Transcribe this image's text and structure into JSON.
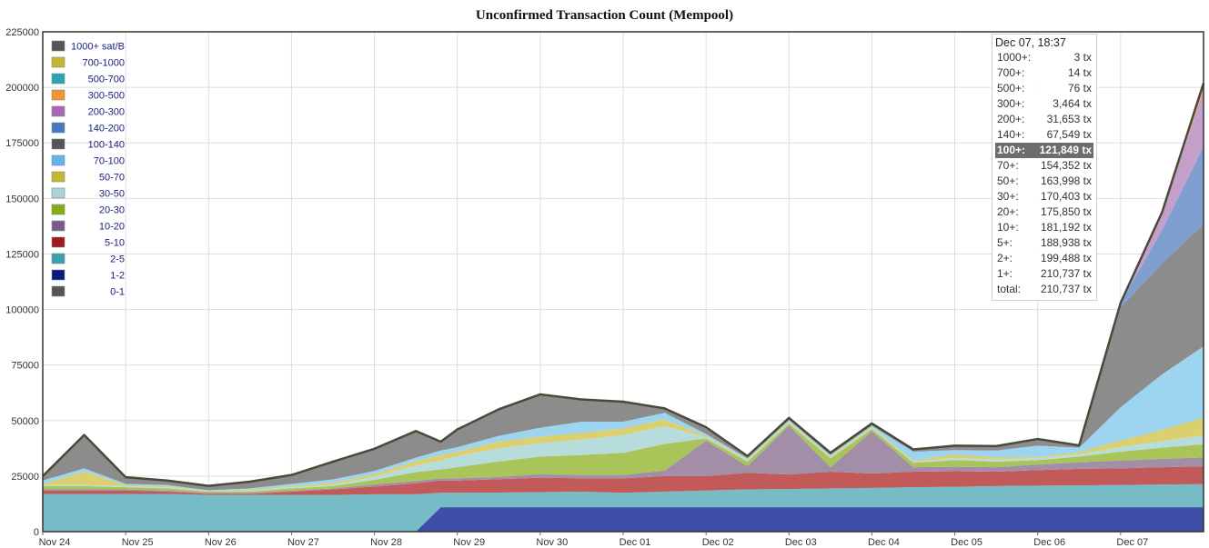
{
  "page": {
    "title": "Unconfirmed Transaction Count (Mempool)"
  },
  "chart_data": {
    "type": "area",
    "stacked": true,
    "title": "Unconfirmed Transaction Count (Mempool)",
    "xlabel": "",
    "ylabel": "",
    "ylim": [
      0,
      225000
    ],
    "grid": true,
    "legend_position": "top-left",
    "x_ticks": [
      "Nov 24",
      "Nov 25",
      "Nov 26",
      "Nov 27",
      "Nov 28",
      "Nov 29",
      "Nov 30",
      "Dec 01",
      "Dec 02",
      "Dec 03",
      "Dec 04",
      "Dec 05",
      "Dec 06",
      "Dec 07"
    ],
    "y_ticks": [
      0,
      25000,
      50000,
      75000,
      100000,
      125000,
      150000,
      175000,
      200000,
      225000
    ],
    "y_tick_labels": [
      "0",
      "25000",
      "50000",
      "75000",
      "100000",
      "125000",
      "150000",
      "175000",
      "200000",
      "225000"
    ],
    "x": [
      0,
      0.5,
      1,
      1.5,
      2,
      2.5,
      3,
      3.5,
      4,
      4.5,
      4.8,
      5,
      5.5,
      6,
      6.5,
      7,
      7.5,
      8,
      8.5,
      9,
      9.5,
      10,
      10.5,
      11,
      11.5,
      12,
      12.5,
      13,
      13.5,
      14
    ],
    "series": [
      {
        "name": "1-2",
        "color": "#3f4fa8",
        "values": [
          0,
          0,
          0,
          0,
          0,
          0,
          0,
          0,
          0,
          0,
          11000,
          11000,
          11000,
          11000,
          11000,
          11000,
          11000,
          11000,
          11000,
          11000,
          11000,
          11000,
          11000,
          11000,
          11000,
          11000,
          11000,
          11000,
          11000,
          11000
        ]
      },
      {
        "name": "2-5",
        "color": "#76bcc7",
        "values": [
          17000,
          17000,
          17000,
          17000,
          16500,
          16500,
          16500,
          16500,
          16800,
          16800,
          6500,
          6500,
          6600,
          6800,
          7000,
          6500,
          7000,
          7500,
          8000,
          8200,
          8500,
          8700,
          9000,
          9200,
          9500,
          9700,
          9800,
          10000,
          10200,
          10400
        ]
      },
      {
        "name": "5-10",
        "color": "#c35a5a",
        "values": [
          1500,
          1500,
          1500,
          1000,
          500,
          500,
          1500,
          2500,
          3500,
          5000,
          5500,
          5500,
          6000,
          6500,
          6000,
          6500,
          7000,
          6500,
          7500,
          6500,
          7500,
          6500,
          7000,
          7000,
          6500,
          7000,
          7500,
          7500,
          7800,
          8000
        ]
      },
      {
        "name": "10-20",
        "color": "#a38ea8",
        "values": [
          500,
          500,
          500,
          500,
          500,
          500,
          500,
          500,
          1000,
          1000,
          1000,
          1000,
          1000,
          1500,
          1500,
          1500,
          2500,
          16000,
          3000,
          22000,
          2000,
          19000,
          2000,
          2000,
          2000,
          2500,
          3000,
          3500,
          3800,
          4000
        ]
      },
      {
        "name": "20-30",
        "color": "#a9c459",
        "values": [
          1500,
          1500,
          1000,
          1000,
          500,
          500,
          1000,
          1000,
          2000,
          4000,
          4000,
          5000,
          7000,
          8000,
          9000,
          10000,
          12000,
          1000,
          2000,
          1000,
          4000,
          1000,
          2000,
          3000,
          2500,
          2000,
          2500,
          4000,
          5000,
          6000
        ]
      },
      {
        "name": "30-50",
        "color": "#b6dcdc",
        "values": [
          500,
          500,
          500,
          500,
          200,
          500,
          500,
          500,
          1500,
          3000,
          4000,
          5000,
          6000,
          6000,
          7000,
          8000,
          8000,
          500,
          500,
          500,
          500,
          500,
          500,
          1000,
          1000,
          1000,
          1000,
          2000,
          3000,
          4000
        ]
      },
      {
        "name": "50-70",
        "color": "#dbcf6f",
        "values": [
          500,
          6000,
          500,
          500,
          200,
          500,
          500,
          1000,
          1000,
          2000,
          2500,
          2000,
          3000,
          3000,
          3000,
          3000,
          3000,
          500,
          500,
          500,
          500,
          500,
          500,
          1500,
          1000,
          500,
          1000,
          3000,
          5000,
          8000
        ]
      },
      {
        "name": "70-100",
        "color": "#9dd4ef",
        "values": [
          1500,
          1500,
          500,
          500,
          200,
          500,
          1000,
          1500,
          1500,
          1500,
          2000,
          2000,
          2500,
          4000,
          5000,
          3000,
          3000,
          1000,
          500,
          500,
          500,
          500,
          4000,
          2000,
          3000,
          5000,
          2000,
          15000,
          25000,
          32000
        ]
      },
      {
        "name": "100-140",
        "color": "#8c8c8c",
        "values": [
          2000,
          15000,
          3000,
          2000,
          2000,
          3000,
          4000,
          8000,
          10000,
          12000,
          4000,
          8000,
          12000,
          15000,
          10000,
          9000,
          2000,
          3000,
          1000,
          1000,
          1000,
          1000,
          1000,
          2000,
          2000,
          3000,
          1000,
          45000,
          50000,
          55000
        ]
      },
      {
        "name": "140-200",
        "color": "#7e9fd0",
        "values": [
          0,
          0,
          0,
          0,
          0,
          0,
          0,
          0,
          0,
          0,
          0,
          0,
          0,
          0,
          0,
          0,
          0,
          0,
          0,
          0,
          0,
          0,
          0,
          0,
          0,
          0,
          0,
          2000,
          15000,
          35000
        ]
      },
      {
        "name": "200-300",
        "color": "#c39fc9",
        "values": [
          0,
          0,
          0,
          0,
          0,
          0,
          0,
          0,
          0,
          0,
          0,
          0,
          0,
          0,
          0,
          0,
          0,
          0,
          0,
          0,
          0,
          0,
          0,
          0,
          0,
          0,
          0,
          0,
          8000,
          25000
        ]
      },
      {
        "name": "300-500",
        "color": "#f0a066",
        "values": [
          0,
          0,
          0,
          0,
          0,
          0,
          0,
          0,
          0,
          0,
          0,
          0,
          0,
          0,
          0,
          0,
          0,
          0,
          0,
          0,
          0,
          0,
          0,
          0,
          0,
          0,
          0,
          0,
          0,
          3500
        ]
      }
    ],
    "legend": {
      "entries": [
        {
          "label": "1000+ sat/B",
          "color": "#555555"
        },
        {
          "label": "700-1000",
          "color": "#c7b532"
        },
        {
          "label": "500-700",
          "color": "#2aa3b3"
        },
        {
          "label": "300-500",
          "color": "#f39339"
        },
        {
          "label": "200-300",
          "color": "#a868b4"
        },
        {
          "label": "140-200",
          "color": "#4878c0"
        },
        {
          "label": "100-140",
          "color": "#555555"
        },
        {
          "label": "70-100",
          "color": "#5fb6ee"
        },
        {
          "label": "50-70",
          "color": "#c7b532"
        },
        {
          "label": "30-50",
          "color": "#a8d6d6"
        },
        {
          "label": "20-30",
          "color": "#86ac16"
        },
        {
          "label": "10-20",
          "color": "#7a5a86"
        },
        {
          "label": "5-10",
          "color": "#a01c1c"
        },
        {
          "label": "2-5",
          "color": "#3aa0b0"
        },
        {
          "label": "1-2",
          "color": "#0a1a80"
        },
        {
          "label": "0-1",
          "color": "#555555"
        }
      ]
    },
    "tooltip": {
      "header": "Dec 07, 18:37",
      "rows": [
        {
          "label": "1000+:",
          "value": "3 tx"
        },
        {
          "label": "700+:",
          "value": "14 tx"
        },
        {
          "label": "500+:",
          "value": "76 tx"
        },
        {
          "label": "300+:",
          "value": "3,464 tx"
        },
        {
          "label": "200+:",
          "value": "31,653 tx"
        },
        {
          "label": "140+:",
          "value": "67,549 tx"
        },
        {
          "label": "100+:",
          "value": "121,849 tx",
          "highlight": true
        },
        {
          "label": "70+:",
          "value": "154,352 tx"
        },
        {
          "label": "50+:",
          "value": "163,998 tx"
        },
        {
          "label": "30+:",
          "value": "170,403 tx"
        },
        {
          "label": "20+:",
          "value": "175,850 tx"
        },
        {
          "label": "10+:",
          "value": "181,192 tx"
        },
        {
          "label": "5+:",
          "value": "188,938 tx"
        },
        {
          "label": "2+:",
          "value": "199,488 tx"
        },
        {
          "label": "1+:",
          "value": "210,737 tx"
        },
        {
          "label": "total:",
          "value": "210,737 tx"
        }
      ]
    }
  }
}
